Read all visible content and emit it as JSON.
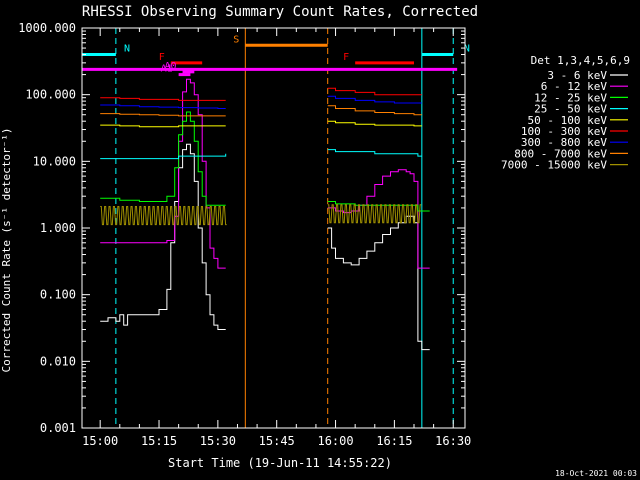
{
  "chart_data": {
    "type": "line",
    "title": "RHESSI Observing Summary Count Rates, Corrected",
    "xlabel": "Start Time (19-Jun-11 14:55:22)",
    "ylabel": "Corrected Count Rate (s⁻¹ detector⁻¹)",
    "y_scale": "log",
    "ylim": [
      0.001,
      1000
    ],
    "xlim": [
      "14:55:22",
      "16:33:00"
    ],
    "x_ticks": [
      "15:00",
      "15:15",
      "15:30",
      "15:45",
      "16:00",
      "16:15",
      "16:30"
    ],
    "y_ticks": [
      "0.001",
      "0.010",
      "0.100",
      "1.000",
      "10.000",
      "100.000",
      "1000.000"
    ],
    "legend_title": "Det 1,3,4,5,6,9",
    "legend_position": "right",
    "timestamp": "18-Oct-2021 00:03",
    "series": [
      {
        "name": "3 - 6 keV",
        "color": "#ffffff",
        "segments": [
          {
            "x": [
              "15:00",
              "15:02",
              "15:04",
              "15:05",
              "15:06",
              "15:07",
              "15:10",
              "15:13",
              "15:15",
              "15:17",
              "15:18",
              "15:19",
              "15:20",
              "15:21",
              "15:22",
              "15:23",
              "15:24",
              "15:25",
              "15:26",
              "15:27",
              "15:28",
              "15:29",
              "15:30",
              "15:31",
              "15:32"
            ],
            "y": [
              0.04,
              0.045,
              0.04,
              0.05,
              0.035,
              0.05,
              0.05,
              0.05,
              0.06,
              0.12,
              0.6,
              2.5,
              8,
              15,
              18,
              13,
              5,
              1,
              0.3,
              0.1,
              0.05,
              0.035,
              0.03,
              0.03,
              0.03
            ]
          },
          {
            "x": [
              "15:58",
              "15:59",
              "16:00",
              "16:02",
              "16:04",
              "16:06",
              "16:08",
              "16:10",
              "16:12",
              "16:14",
              "16:16",
              "16:18",
              "16:19",
              "16:20",
              "16:21",
              "16:22",
              "16:24"
            ],
            "y": [
              1.0,
              0.5,
              0.35,
              0.3,
              0.28,
              0.35,
              0.45,
              0.6,
              0.8,
              1.0,
              1.2,
              1.5,
              1.5,
              1.2,
              0.02,
              0.015,
              0.015
            ]
          }
        ]
      },
      {
        "name": "6 - 12 keV",
        "color": "#ff00ff",
        "segments": [
          {
            "x": [
              "15:00",
              "15:05",
              "15:10",
              "15:15",
              "15:17",
              "15:19",
              "15:20",
              "15:21",
              "15:22",
              "15:23",
              "15:24",
              "15:25",
              "15:26",
              "15:27",
              "15:28",
              "15:29",
              "15:30",
              "15:32"
            ],
            "y": [
              0.6,
              0.6,
              0.6,
              0.6,
              0.65,
              1.5,
              20,
              110,
              170,
              150,
              100,
              50,
              10,
              2,
              0.5,
              0.35,
              0.25,
              0.25
            ]
          },
          {
            "x": [
              "15:58",
              "16:00",
              "16:02",
              "16:04",
              "16:06",
              "16:08",
              "16:10",
              "16:12",
              "16:14",
              "16:16",
              "16:18",
              "16:19",
              "16:20",
              "16:21",
              "16:22",
              "16:24"
            ],
            "y": [
              2.0,
              1.8,
              1.7,
              1.8,
              2.2,
              3.0,
              4.5,
              6.0,
              7.0,
              7.5,
              7.0,
              6.5,
              5.0,
              0.25,
              0.25,
              0.25
            ]
          }
        ]
      },
      {
        "name": "12 - 25 keV",
        "color": "#00ff00",
        "segments": [
          {
            "x": [
              "15:00",
              "15:05",
              "15:10",
              "15:15",
              "15:17",
              "15:19",
              "15:20",
              "15:21",
              "15:22",
              "15:23",
              "15:24",
              "15:25",
              "15:26",
              "15:27",
              "15:28",
              "15:30",
              "15:32"
            ],
            "y": [
              2.8,
              2.6,
              2.5,
              2.5,
              3.0,
              8,
              25,
              40,
              55,
              40,
              20,
              7,
              3,
              2.2,
              2.2,
              2.2,
              2.2
            ]
          },
          {
            "x": [
              "15:58",
              "16:00",
              "16:05",
              "16:10",
              "16:15",
              "16:19",
              "16:20",
              "16:21",
              "16:22",
              "16:24"
            ],
            "y": [
              2.5,
              2.3,
              2.2,
              2.2,
              2.2,
              2.2,
              2.2,
              1.8,
              1.8,
              1.8
            ]
          }
        ]
      },
      {
        "name": "25 - 50 keV",
        "color": "#00ffff",
        "segments": [
          {
            "x": [
              "15:00",
              "15:05",
              "15:10",
              "15:15",
              "15:20",
              "15:25",
              "15:30",
              "15:32"
            ],
            "y": [
              11,
              11,
              11,
              11,
              12,
              12,
              12,
              13
            ]
          },
          {
            "x": [
              "15:58",
              "16:00",
              "16:05",
              "16:10",
              "16:15",
              "16:20",
              "16:21",
              "16:22"
            ],
            "y": [
              15,
              14,
              14,
              13,
              13,
              13,
              12,
              12
            ]
          }
        ]
      },
      {
        "name": "50 - 100 keV",
        "color": "#ffff00",
        "segments": [
          {
            "x": [
              "15:00",
              "15:05",
              "15:10",
              "15:15",
              "15:20",
              "15:25",
              "15:30",
              "15:32"
            ],
            "y": [
              35,
              34,
              33,
              33,
              34,
              34,
              34,
              34
            ]
          },
          {
            "x": [
              "15:58",
              "16:00",
              "16:05",
              "16:10",
              "16:15",
              "16:20",
              "16:21",
              "16:22"
            ],
            "y": [
              40,
              38,
              36,
              35,
              35,
              34,
              34,
              34
            ]
          }
        ]
      },
      {
        "name": "100 - 300 keV",
        "color": "#ff0000",
        "segments": [
          {
            "x": [
              "15:00",
              "15:05",
              "15:10",
              "15:15",
              "15:20",
              "15:25",
              "15:30",
              "15:32"
            ],
            "y": [
              90,
              88,
              85,
              85,
              82,
              82,
              82,
              82
            ]
          },
          {
            "x": [
              "15:58",
              "16:00",
              "16:05",
              "16:10",
              "16:15",
              "16:20",
              "16:21",
              "16:22"
            ],
            "y": [
              125,
              115,
              108,
              100,
              100,
              100,
              100,
              100
            ]
          }
        ]
      },
      {
        "name": "300 - 800 keV",
        "color": "#0000ff",
        "segments": [
          {
            "x": [
              "15:00",
              "15:05",
              "15:10",
              "15:15",
              "15:20",
              "15:25",
              "15:30",
              "15:32"
            ],
            "y": [
              70,
              68,
              66,
              65,
              64,
              63,
              62,
              62
            ]
          },
          {
            "x": [
              "15:58",
              "16:00",
              "16:05",
              "16:10",
              "16:15",
              "16:20",
              "16:21",
              "16:22"
            ],
            "y": [
              95,
              88,
              82,
              78,
              75,
              75,
              75,
              75
            ]
          }
        ]
      },
      {
        "name": "800 - 7000 keV",
        "color": "#ff8000",
        "segments": [
          {
            "x": [
              "15:00",
              "15:05",
              "15:10",
              "15:15",
              "15:20",
              "15:25",
              "15:30",
              "15:32"
            ],
            "y": [
              52,
              51,
              50,
              49,
              48,
              48,
              48,
              48
            ]
          },
          {
            "x": [
              "15:58",
              "16:00",
              "16:05",
              "16:10",
              "16:15",
              "16:20",
              "16:21",
              "16:22"
            ],
            "y": [
              68,
              62,
              57,
              54,
              52,
              50,
              50,
              50
            ]
          }
        ]
      },
      {
        "name": "7000 - 15000 keV",
        "color": "#a09000",
        "noisy": true,
        "segments": [
          {
            "x": [
              "15:00",
              "15:05",
              "15:10",
              "15:15",
              "15:20",
              "15:25",
              "15:30",
              "15:32"
            ],
            "y": [
              1.5,
              1.5,
              1.5,
              1.5,
              1.5,
              1.5,
              1.5,
              1.5
            ]
          },
          {
            "x": [
              "15:58",
              "16:00",
              "16:05",
              "16:10",
              "16:15",
              "16:20",
              "16:21",
              "16:22"
            ],
            "y": [
              1.6,
              1.5,
              1.5,
              1.5,
              1.5,
              1.5,
              1.5,
              1.5
            ]
          }
        ]
      }
    ],
    "flags": [
      {
        "label": "N",
        "color": "#00ffff",
        "y_level": 400,
        "spans": [
          [
            "14:55",
            "15:04"
          ],
          [
            "16:22",
            "16:30"
          ]
        ]
      },
      {
        "label": "",
        "color": "#ff00ff",
        "y_level": 240,
        "spans": [
          [
            "14:55",
            "16:31"
          ]
        ]
      },
      {
        "label": "F",
        "color": "#ff0000",
        "y_level": 300,
        "spans": [
          [
            "15:18",
            "15:26"
          ],
          [
            "16:05",
            "16:20"
          ]
        ]
      },
      {
        "label": "A0",
        "color": "#ff00ff",
        "y_level": 220,
        "spans": [
          [
            "15:21",
            "15:24"
          ]
        ]
      },
      {
        "label": "A1",
        "color": "#ff00ff",
        "y_level": 200,
        "spans": [
          [
            "15:20",
            "15:23"
          ]
        ]
      },
      {
        "label": "S",
        "color": "#ff8000",
        "y_level": 550,
        "spans": [
          [
            "15:37",
            "15:58"
          ]
        ]
      }
    ],
    "vlines": [
      {
        "x": "15:04",
        "color": "#00ffff",
        "dashed": true
      },
      {
        "x": "15:37",
        "color": "#ff8000",
        "dashed": false
      },
      {
        "x": "15:58",
        "color": "#ff8000",
        "dashed": true
      },
      {
        "x": "16:22",
        "color": "#00ffff",
        "dashed": false
      },
      {
        "x": "16:30",
        "color": "#00ffff",
        "dashed": true
      }
    ]
  }
}
